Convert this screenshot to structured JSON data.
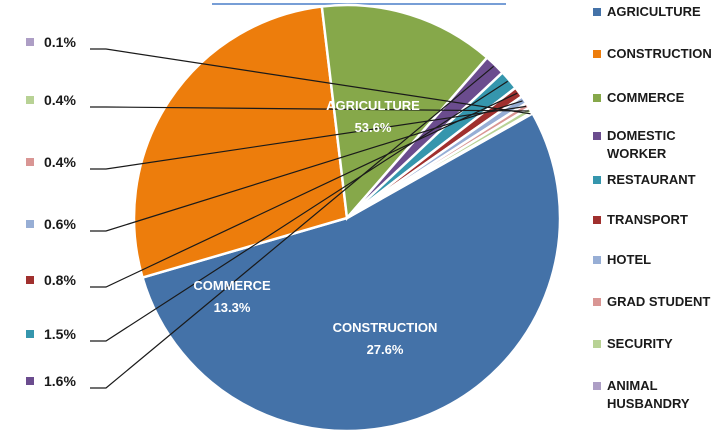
{
  "chart_data": {
    "type": "pie",
    "title": "",
    "legend_position": "right",
    "slices": [
      {
        "label": "AGRICULTURE",
        "value": 53.6,
        "display": "53.6%",
        "color": "#4472a8"
      },
      {
        "label": "CONSTRUCTION",
        "value": 27.6,
        "display": "27.6%",
        "color": "#ed7d0c"
      },
      {
        "label": "COMMERCE",
        "value": 13.3,
        "display": "13.3%",
        "color": "#86a84a"
      },
      {
        "label": "DOMESTIC WORKER",
        "value": 1.6,
        "display": "1.6%",
        "color": "#6b4c8e"
      },
      {
        "label": "RESTAURANT",
        "value": 1.5,
        "display": "1.5%",
        "color": "#3596ad"
      },
      {
        "label": "TRANSPORT",
        "value": 0.8,
        "display": "0.8%",
        "color": "#a0302e"
      },
      {
        "label": "HOTEL",
        "value": 0.6,
        "display": "0.6%",
        "color": "#97aed5"
      },
      {
        "label": "GRAD STUDENT",
        "value": 0.4,
        "display": "0.4%",
        "color": "#d99694"
      },
      {
        "label": "SECURITY",
        "value": 0.4,
        "display": "0.4%",
        "color": "#b8d295"
      },
      {
        "label": "ANIMAL HUSBANDRY",
        "value": 0.1,
        "display": "0.1%",
        "color": "#ad9ec5"
      }
    ]
  }
}
